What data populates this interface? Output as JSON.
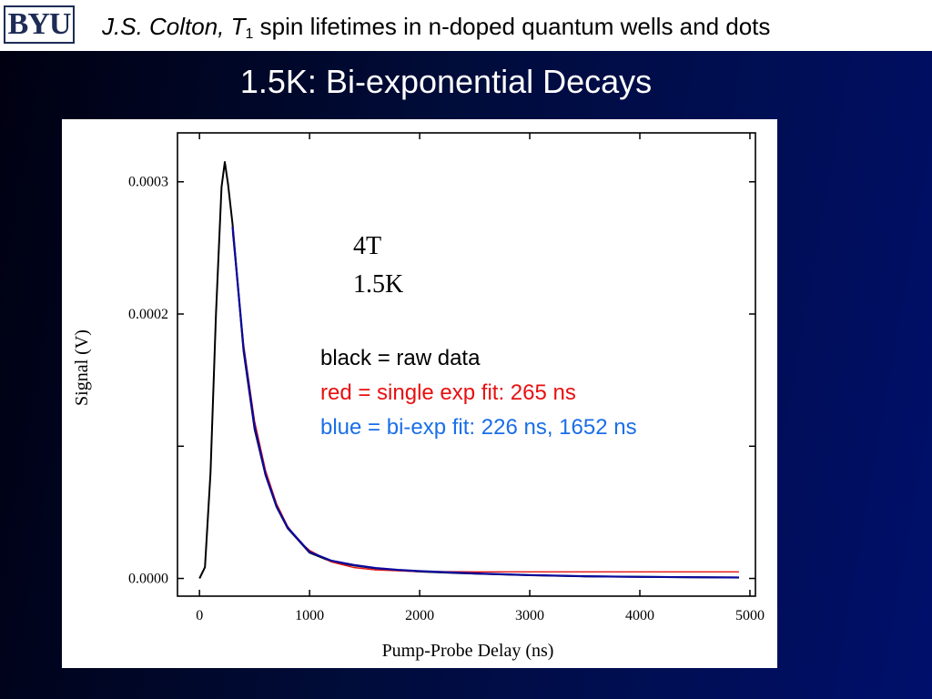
{
  "header": {
    "logo_text": "BYU",
    "author": "J.S. Colton, ",
    "t_symbol": "T",
    "t_subscript": "1",
    "title_rest": " spin lifetimes in n-doped quantum wells and dots"
  },
  "slide": {
    "title": "1.5K:  Bi-exponential Decays"
  },
  "colors": {
    "raw": "#000000",
    "single_fit": "#e31212",
    "bi_fit": "#0a0a9e",
    "legend_red": "#e81010",
    "legend_blue": "#1a6ee8"
  },
  "chart_data": {
    "type": "line",
    "xlabel": "Pump-Probe Delay (ns)",
    "ylabel": "Signal (V)",
    "xlim": [
      -200,
      5050
    ],
    "ylim": [
      -1.34e-05,
      0.000337
    ],
    "x_ticks": [
      0,
      1000,
      2000,
      3000,
      4000,
      5000
    ],
    "x_tick_labels": [
      "0",
      "1000",
      "2000",
      "3000",
      "4000",
      "5000"
    ],
    "y_ticks": [
      0.0,
      0.0001,
      0.0002,
      0.0003
    ],
    "y_tick_labels": [
      "0.0000",
      "",
      "0.0002",
      "0.0003"
    ],
    "annotations": [
      "4T",
      "1.5K"
    ],
    "legend": [
      "black = raw data",
      "red = single exp fit: 265 ns",
      "blue = bi-exp fit: 226 ns, 1652 ns"
    ],
    "series": [
      {
        "key": "raw",
        "x": [
          0,
          50,
          100,
          150,
          200,
          230,
          260,
          300,
          400,
          500,
          600,
          700,
          800,
          1000,
          1200,
          1400,
          1600,
          1800,
          2000,
          2500,
          3000,
          3500,
          4000,
          4500,
          4900
        ],
        "y": [
          0.0,
          8.5e-06,
          8e-05,
          0.0002,
          0.000296,
          0.000315,
          0.000298,
          0.000268,
          0.000172,
          0.000113,
          7.8e-05,
          5.4e-05,
          3.8e-05,
          1.95e-05,
          1.28e-05,
          9.8e-06,
          7.6e-06,
          6.2e-06,
          5.2e-06,
          3.6e-06,
          2.4e-06,
          1.6e-06,
          1.2e-06,
          9e-07,
          7e-07
        ]
      },
      {
        "key": "single_fit",
        "x": [
          300,
          400,
          500,
          600,
          700,
          800,
          900,
          1000,
          1200,
          1400,
          1600,
          2000,
          2500,
          3000,
          3500,
          4000,
          4500,
          4900
        ],
        "y": [
          0.000262,
          0.000177,
          0.000119,
          8.15e-05,
          5.65e-05,
          3.95e-05,
          2.85e-05,
          2.12e-05,
          1.24e-05,
          8.3e-06,
          6.4e-06,
          5.2e-06,
          5e-06,
          5e-06,
          5e-06,
          5e-06,
          5e-06,
          5e-06
        ]
      },
      {
        "key": "bi_fit",
        "x": [
          300,
          400,
          500,
          600,
          700,
          800,
          1000,
          1200,
          1400,
          1600,
          1800,
          2000,
          2500,
          3000,
          3500,
          4000,
          4500,
          4900
        ],
        "y": [
          0.000266,
          0.000174,
          0.000115,
          7.85e-05,
          5.45e-05,
          3.85e-05,
          2e-05,
          1.34e-05,
          1.02e-05,
          7.9e-06,
          6.5e-06,
          5.5e-06,
          3.8e-06,
          2.6e-06,
          1.7e-06,
          1.2e-06,
          9e-07,
          7e-07
        ]
      }
    ]
  }
}
